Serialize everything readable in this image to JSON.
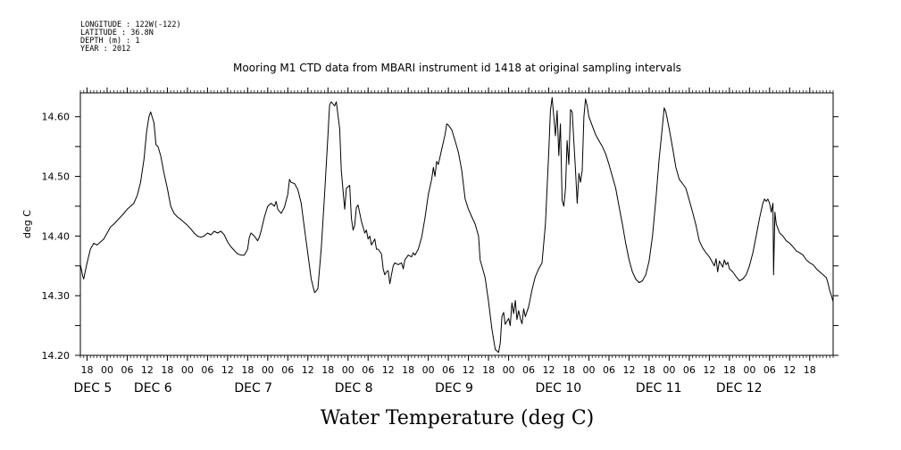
{
  "meta_lines": [
    "LONGITUDE : 122W(-122)",
    "LATITUDE : 36.8N",
    "DEPTH (m) : 1",
    "YEAR : 2012"
  ],
  "chart_data": {
    "type": "line",
    "title": "Mooring M1 CTD data from MBARI instrument id 1418 at original sampling intervals",
    "xlabel": "Water Temperature (deg C)",
    "ylabel": "deg C",
    "ylim": [
      14.2,
      14.64
    ],
    "yticks": [
      14.2,
      14.3,
      14.4,
      14.5,
      14.6
    ],
    "ytick_labels": [
      "14.20",
      "14.30",
      "14.40",
      "14.50",
      "14.60"
    ],
    "xlim_hours": [
      -8,
      217
    ],
    "hour_ticks": [
      -6,
      0,
      6,
      12,
      18,
      24,
      30,
      36,
      42,
      48,
      54,
      60,
      66,
      72,
      78,
      84,
      90,
      96,
      102,
      108,
      114,
      120,
      126,
      132,
      138,
      144,
      150,
      156,
      162,
      168,
      174,
      180,
      186,
      192,
      198,
      204,
      210
    ],
    "hour_tick_labels": [
      "18",
      "00",
      "06",
      "12",
      "18",
      "00",
      "06",
      "12",
      "18",
      "00",
      "06",
      "12",
      "18",
      "00",
      "06",
      "12",
      "18",
      "00",
      "06",
      "12",
      "18",
      "00",
      "06",
      "12",
      "18",
      "00",
      "06",
      "12",
      "18",
      "00",
      "06",
      "12",
      "18",
      "00",
      "06",
      "12",
      "18"
    ],
    "day_labels": [
      {
        "hour": -6,
        "text": "DEC  5"
      },
      {
        "hour": 12,
        "text": "DEC  6"
      },
      {
        "hour": 42,
        "text": "DEC  7"
      },
      {
        "hour": 72,
        "text": "DEC  8"
      },
      {
        "hour": 102,
        "text": "DEC  9"
      },
      {
        "hour": 132,
        "text": "DEC 10"
      },
      {
        "hour": 162,
        "text": "DEC 11"
      },
      {
        "hour": 186,
        "text": "DEC 12"
      }
    ],
    "series": [
      {
        "points": [
          [
            -8,
            14.352
          ],
          [
            -7.3,
            14.333
          ],
          [
            -7,
            14.328
          ],
          [
            -6,
            14.355
          ],
          [
            -5,
            14.378
          ],
          [
            -4,
            14.388
          ],
          [
            -3,
            14.385
          ],
          [
            -2,
            14.39
          ],
          [
            -1,
            14.395
          ],
          [
            0,
            14.405
          ],
          [
            1,
            14.415
          ],
          [
            2,
            14.42
          ],
          [
            3,
            14.426
          ],
          [
            4,
            14.432
          ],
          [
            5,
            14.438
          ],
          [
            6,
            14.445
          ],
          [
            7,
            14.45
          ],
          [
            8,
            14.455
          ],
          [
            9,
            14.468
          ],
          [
            10,
            14.49
          ],
          [
            11,
            14.528
          ],
          [
            11.8,
            14.575
          ],
          [
            12.5,
            14.6
          ],
          [
            13,
            14.608
          ],
          [
            14,
            14.59
          ],
          [
            14.6,
            14.553
          ],
          [
            15.2,
            14.55
          ],
          [
            16,
            14.535
          ],
          [
            17,
            14.505
          ],
          [
            18,
            14.48
          ],
          [
            19,
            14.45
          ],
          [
            20,
            14.438
          ],
          [
            21,
            14.432
          ],
          [
            22,
            14.428
          ],
          [
            23,
            14.423
          ],
          [
            24,
            14.418
          ],
          [
            25,
            14.412
          ],
          [
            26,
            14.405
          ],
          [
            27,
            14.4
          ],
          [
            28,
            14.398
          ],
          [
            29,
            14.4
          ],
          [
            30,
            14.405
          ],
          [
            31,
            14.402
          ],
          [
            32,
            14.408
          ],
          [
            33,
            14.405
          ],
          [
            34,
            14.408
          ],
          [
            35,
            14.402
          ],
          [
            36,
            14.39
          ],
          [
            37,
            14.382
          ],
          [
            38,
            14.376
          ],
          [
            39,
            14.37
          ],
          [
            40,
            14.368
          ],
          [
            41,
            14.368
          ],
          [
            42,
            14.378
          ],
          [
            42.5,
            14.398
          ],
          [
            43,
            14.405
          ],
          [
            44,
            14.4
          ],
          [
            45,
            14.392
          ],
          [
            45.5,
            14.398
          ],
          [
            46,
            14.408
          ],
          [
            47,
            14.432
          ],
          [
            48,
            14.45
          ],
          [
            49,
            14.455
          ],
          [
            50,
            14.45
          ],
          [
            50.5,
            14.458
          ],
          [
            51,
            14.445
          ],
          [
            52,
            14.438
          ],
          [
            53,
            14.448
          ],
          [
            54,
            14.47
          ],
          [
            54.5,
            14.495
          ],
          [
            55,
            14.49
          ],
          [
            56,
            14.488
          ],
          [
            57,
            14.478
          ],
          [
            58,
            14.455
          ],
          [
            59,
            14.412
          ],
          [
            60,
            14.37
          ],
          [
            61,
            14.328
          ],
          [
            62,
            14.305
          ],
          [
            62.5,
            14.308
          ],
          [
            63,
            14.312
          ],
          [
            64,
            14.38
          ],
          [
            65,
            14.47
          ],
          [
            66,
            14.57
          ],
          [
            66.5,
            14.62
          ],
          [
            67,
            14.625
          ],
          [
            68,
            14.618
          ],
          [
            68.5,
            14.625
          ],
          [
            69.5,
            14.58
          ],
          [
            70,
            14.51
          ],
          [
            71,
            14.445
          ],
          [
            71.5,
            14.48
          ],
          [
            72.5,
            14.485
          ],
          [
            73,
            14.43
          ],
          [
            73.5,
            14.41
          ],
          [
            74,
            14.418
          ],
          [
            74.5,
            14.448
          ],
          [
            75,
            14.452
          ],
          [
            76,
            14.425
          ],
          [
            77,
            14.405
          ],
          [
            77.5,
            14.41
          ],
          [
            78,
            14.395
          ],
          [
            78.5,
            14.4
          ],
          [
            79,
            14.385
          ],
          [
            80,
            14.395
          ],
          [
            80.5,
            14.378
          ],
          [
            81,
            14.378
          ],
          [
            82,
            14.37
          ],
          [
            82.5,
            14.345
          ],
          [
            83,
            14.335
          ],
          [
            83.5,
            14.34
          ],
          [
            84,
            14.342
          ],
          [
            84.5,
            14.32
          ],
          [
            85,
            14.335
          ],
          [
            85.5,
            14.35
          ],
          [
            86,
            14.355
          ],
          [
            87,
            14.352
          ],
          [
            88,
            14.355
          ],
          [
            88.5,
            14.345
          ],
          [
            89,
            14.36
          ],
          [
            90,
            14.368
          ],
          [
            91,
            14.365
          ],
          [
            91.5,
            14.372
          ],
          [
            92,
            14.368
          ],
          [
            93,
            14.378
          ],
          [
            94,
            14.398
          ],
          [
            95,
            14.43
          ],
          [
            96,
            14.47
          ],
          [
            97,
            14.495
          ],
          [
            97.5,
            14.515
          ],
          [
            98,
            14.5
          ],
          [
            98.5,
            14.525
          ],
          [
            99,
            14.52
          ],
          [
            100,
            14.545
          ],
          [
            101,
            14.57
          ],
          [
            101.5,
            14.588
          ],
          [
            102,
            14.586
          ],
          [
            103,
            14.578
          ],
          [
            104,
            14.56
          ],
          [
            105,
            14.54
          ],
          [
            106,
            14.51
          ],
          [
            107,
            14.462
          ],
          [
            108,
            14.445
          ],
          [
            109,
            14.432
          ],
          [
            110,
            14.42
          ],
          [
            111,
            14.4
          ],
          [
            111.5,
            14.36
          ],
          [
            112,
            14.35
          ],
          [
            113,
            14.33
          ],
          [
            114,
            14.29
          ],
          [
            115,
            14.245
          ],
          [
            116,
            14.21
          ],
          [
            117,
            14.205
          ],
          [
            117.5,
            14.22
          ],
          [
            118,
            14.265
          ],
          [
            118.5,
            14.272
          ],
          [
            119,
            14.252
          ],
          [
            120,
            14.262
          ],
          [
            120.5,
            14.25
          ],
          [
            121,
            14.288
          ],
          [
            121.5,
            14.27
          ],
          [
            122,
            14.292
          ],
          [
            122.5,
            14.26
          ],
          [
            123,
            14.275
          ],
          [
            123.5,
            14.262
          ],
          [
            124,
            14.253
          ],
          [
            124.5,
            14.278
          ],
          [
            125,
            14.265
          ],
          [
            126,
            14.282
          ],
          [
            127,
            14.31
          ],
          [
            128,
            14.332
          ],
          [
            129,
            14.345
          ],
          [
            130,
            14.355
          ],
          [
            131,
            14.42
          ],
          [
            132,
            14.54
          ],
          [
            132.5,
            14.61
          ],
          [
            133,
            14.632
          ],
          [
            133.5,
            14.6
          ],
          [
            134,
            14.568
          ],
          [
            134.5,
            14.61
          ],
          [
            135,
            14.535
          ],
          [
            135.5,
            14.588
          ],
          [
            136,
            14.46
          ],
          [
            136.5,
            14.45
          ],
          [
            137,
            14.48
          ],
          [
            137.5,
            14.56
          ],
          [
            138,
            14.52
          ],
          [
            138.5,
            14.612
          ],
          [
            139,
            14.608
          ],
          [
            139.5,
            14.56
          ],
          [
            140,
            14.51
          ],
          [
            140.5,
            14.455
          ],
          [
            141,
            14.505
          ],
          [
            141.5,
            14.49
          ],
          [
            142,
            14.51
          ],
          [
            142.5,
            14.6
          ],
          [
            143,
            14.63
          ],
          [
            143.5,
            14.618
          ],
          [
            144,
            14.6
          ],
          [
            145,
            14.585
          ],
          [
            146,
            14.57
          ],
          [
            147,
            14.56
          ],
          [
            148,
            14.55
          ],
          [
            149,
            14.538
          ],
          [
            150,
            14.52
          ],
          [
            151,
            14.5
          ],
          [
            152,
            14.48
          ],
          [
            153,
            14.45
          ],
          [
            154,
            14.42
          ],
          [
            155,
            14.388
          ],
          [
            156,
            14.36
          ],
          [
            157,
            14.34
          ],
          [
            158,
            14.328
          ],
          [
            159,
            14.322
          ],
          [
            160,
            14.325
          ],
          [
            161,
            14.335
          ],
          [
            162,
            14.358
          ],
          [
            163,
            14.4
          ],
          [
            164,
            14.46
          ],
          [
            165,
            14.53
          ],
          [
            166,
            14.585
          ],
          [
            166.5,
            14.615
          ],
          [
            167,
            14.608
          ],
          [
            168,
            14.58
          ],
          [
            169,
            14.548
          ],
          [
            170,
            14.515
          ],
          [
            171,
            14.495
          ],
          [
            172,
            14.488
          ],
          [
            173,
            14.48
          ],
          [
            174,
            14.46
          ],
          [
            175,
            14.44
          ],
          [
            176,
            14.418
          ],
          [
            177,
            14.392
          ],
          [
            178,
            14.38
          ],
          [
            179,
            14.372
          ],
          [
            180,
            14.365
          ],
          [
            181,
            14.355
          ],
          [
            181.5,
            14.35
          ],
          [
            182,
            14.362
          ],
          [
            182.5,
            14.34
          ],
          [
            183,
            14.358
          ],
          [
            184,
            14.348
          ],
          [
            184.5,
            14.36
          ],
          [
            185,
            14.352
          ],
          [
            185.5,
            14.356
          ],
          [
            186,
            14.345
          ],
          [
            187,
            14.34
          ],
          [
            188,
            14.332
          ],
          [
            189,
            14.325
          ],
          [
            190,
            14.328
          ],
          [
            191,
            14.335
          ],
          [
            192,
            14.35
          ],
          [
            193,
            14.372
          ],
          [
            194,
            14.4
          ],
          [
            195,
            14.43
          ],
          [
            196,
            14.455
          ],
          [
            196.5,
            14.462
          ],
          [
            197,
            14.458
          ],
          [
            197.5,
            14.462
          ],
          [
            198,
            14.455
          ],
          [
            198.5,
            14.44
          ],
          [
            199,
            14.455
          ],
          [
            199.2,
            14.335
          ],
          [
            199.6,
            14.44
          ],
          [
            200,
            14.42
          ],
          [
            201,
            14.405
          ],
          [
            202,
            14.4
          ],
          [
            203,
            14.392
          ],
          [
            204,
            14.388
          ],
          [
            205,
            14.382
          ],
          [
            206,
            14.375
          ],
          [
            207,
            14.372
          ],
          [
            208,
            14.368
          ],
          [
            209,
            14.36
          ],
          [
            210,
            14.355
          ],
          [
            211,
            14.352
          ],
          [
            212,
            14.345
          ],
          [
            213,
            14.34
          ],
          [
            214,
            14.335
          ],
          [
            215,
            14.33
          ],
          [
            215.5,
            14.32
          ],
          [
            216,
            14.308
          ],
          [
            216.5,
            14.3
          ],
          [
            217,
            14.29
          ]
        ]
      }
    ]
  }
}
